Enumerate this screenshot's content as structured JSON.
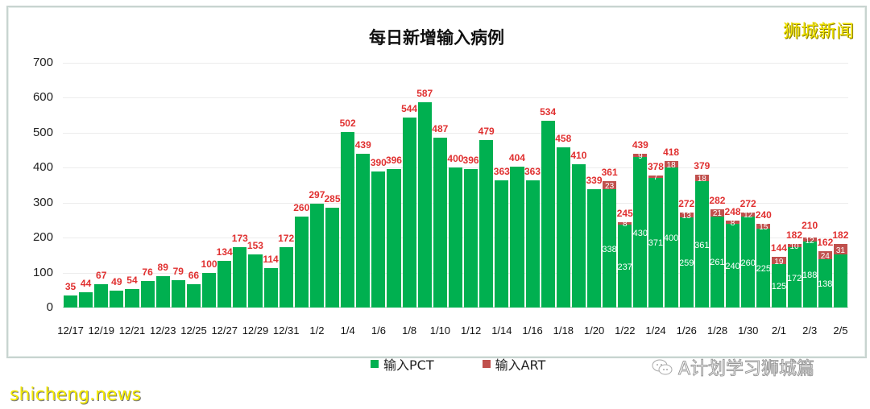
{
  "chart_data": {
    "type": "bar",
    "stacked": true,
    "title": "每日新增输入病例",
    "xlabel": "",
    "ylabel": "",
    "ylim": [
      0,
      700
    ],
    "yticks": [
      0,
      100,
      200,
      300,
      400,
      500,
      600,
      700
    ],
    "grid": true,
    "legend_position": "bottom",
    "categories": [
      "12/17",
      "12/18",
      "12/19",
      "12/20",
      "12/21",
      "12/22",
      "12/23",
      "12/24",
      "12/25",
      "12/26",
      "12/27",
      "12/28",
      "12/29",
      "12/30",
      "12/31",
      "1/1",
      "1/2",
      "1/3",
      "1/4",
      "1/5",
      "1/6",
      "1/7",
      "1/8",
      "1/9",
      "1/10",
      "1/11",
      "1/12",
      "1/13",
      "1/14",
      "1/15",
      "1/16",
      "1/17",
      "1/18",
      "1/19",
      "1/20",
      "1/21",
      "1/22",
      "1/23",
      "1/24",
      "1/25",
      "1/26",
      "1/27",
      "1/28",
      "1/29",
      "1/30",
      "1/31",
      "2/1",
      "2/2",
      "2/3",
      "2/4",
      "2/5"
    ],
    "xtick_labels": [
      "12/17",
      "12/19",
      "12/21",
      "12/23",
      "12/25",
      "12/27",
      "12/29",
      "12/31",
      "1/2",
      "1/4",
      "1/6",
      "1/8",
      "1/10",
      "1/12",
      "1/14",
      "1/16",
      "1/18",
      "1/20",
      "1/22",
      "1/24",
      "1/26",
      "1/28",
      "1/30",
      "2/1",
      "2/3",
      "2/5"
    ],
    "totals": [
      35,
      44,
      67,
      49,
      54,
      76,
      89,
      79,
      66,
      100,
      134,
      173,
      153,
      114,
      172,
      260,
      297,
      285,
      502,
      439,
      390,
      396,
      544,
      587,
      487,
      400,
      396,
      479,
      363,
      404,
      363,
      534,
      458,
      410,
      339,
      361,
      245,
      439,
      378,
      418,
      272,
      379,
      282,
      248,
      272,
      240,
      144,
      182,
      210,
      162,
      182
    ],
    "series": [
      {
        "name": "输入PCT",
        "color": "#00b050",
        "values": [
          35,
          44,
          67,
          49,
          54,
          76,
          89,
          79,
          66,
          100,
          134,
          173,
          153,
          114,
          172,
          260,
          297,
          285,
          502,
          439,
          390,
          396,
          544,
          587,
          487,
          400,
          396,
          479,
          363,
          404,
          363,
          534,
          458,
          410,
          339,
          338,
          237,
          430,
          371,
          400,
          259,
          361,
          261,
          240,
          260,
          225,
          125,
          172,
          188,
          138,
          151
        ],
        "labels": [
          null,
          null,
          null,
          null,
          null,
          null,
          null,
          null,
          null,
          null,
          null,
          null,
          null,
          null,
          null,
          null,
          null,
          null,
          null,
          null,
          null,
          null,
          null,
          null,
          null,
          null,
          null,
          null,
          null,
          null,
          null,
          null,
          null,
          null,
          null,
          "338",
          "237",
          "430",
          "371",
          "400",
          "259",
          "361",
          "261",
          "240",
          "260",
          "225",
          "125",
          "172",
          "188",
          "138",
          null
        ]
      },
      {
        "name": "输入ART",
        "color": "#c0504d",
        "values": [
          0,
          0,
          0,
          0,
          0,
          0,
          0,
          0,
          0,
          0,
          0,
          0,
          0,
          0,
          0,
          0,
          0,
          0,
          0,
          0,
          0,
          0,
          0,
          0,
          0,
          0,
          0,
          0,
          0,
          0,
          0,
          0,
          0,
          0,
          0,
          23,
          8,
          9,
          7,
          18,
          13,
          18,
          21,
          8,
          12,
          15,
          19,
          10,
          12,
          24,
          31
        ],
        "labels": [
          null,
          null,
          null,
          null,
          null,
          null,
          null,
          null,
          null,
          null,
          null,
          null,
          null,
          null,
          null,
          null,
          null,
          null,
          null,
          null,
          null,
          null,
          null,
          null,
          null,
          null,
          null,
          null,
          null,
          null,
          null,
          null,
          null,
          null,
          null,
          "23",
          "8",
          "9",
          "7",
          "18",
          "13",
          "18",
          "21",
          "8",
          "12",
          "15",
          "19",
          "10",
          "12",
          "24",
          "31"
        ]
      }
    ]
  },
  "header": {
    "title": "每日新增输入病例",
    "brand": "狮城新闻"
  },
  "legend": {
    "pct_label": "输入PCT",
    "art_label": "输入ART"
  },
  "watermarks": {
    "wechat_account": "A计划学习狮城篇",
    "site": "shicheng.news"
  }
}
